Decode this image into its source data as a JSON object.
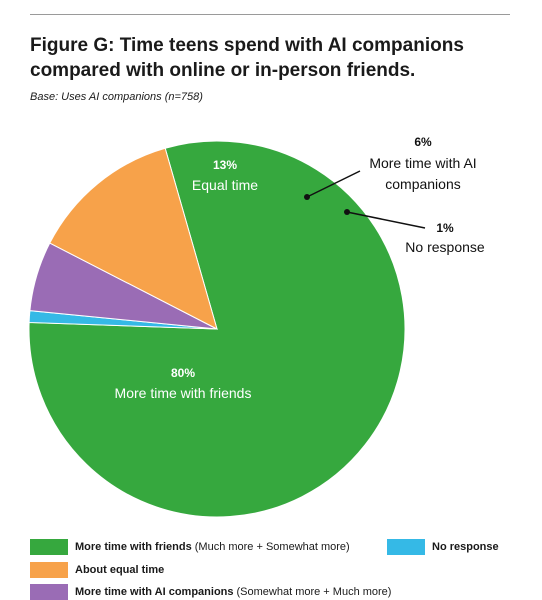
{
  "header": {
    "title": "Figure G: Time teens spend with AI companions compared with online or in-person friends.",
    "base": "Base: Uses AI companions (n=758)"
  },
  "colors": {
    "friends": "#36a83e",
    "equal": "#f7a24a",
    "ai": "#9a6cb5",
    "no_response": "#35b9e6"
  },
  "chart_data": {
    "type": "pie",
    "title": "Figure G: Time teens spend with AI companions compared with online or in-person friends.",
    "subtitle": "Base: Uses AI companions (n=758)",
    "slices": [
      {
        "key": "friends",
        "label": "More time with friends",
        "value": 80,
        "value_label": "80%"
      },
      {
        "key": "no_response",
        "label": "No response",
        "value": 1,
        "value_label": "1%"
      },
      {
        "key": "ai",
        "label": "More time with AI companions",
        "value": 6,
        "value_label": "6%"
      },
      {
        "key": "equal",
        "label": "Equal time",
        "value": 13,
        "value_label": "13%"
      }
    ],
    "legend": [
      {
        "key": "friends",
        "label": "More time with friends",
        "note": "(Much more + Somewhat more)"
      },
      {
        "key": "equal",
        "label": "About equal time",
        "note": ""
      },
      {
        "key": "ai",
        "label": "More time with AI companions",
        "note": "(Somewhat more + Much more)"
      },
      {
        "key": "no_response",
        "label": "No response",
        "note": ""
      }
    ],
    "legend_position": "bottom"
  }
}
